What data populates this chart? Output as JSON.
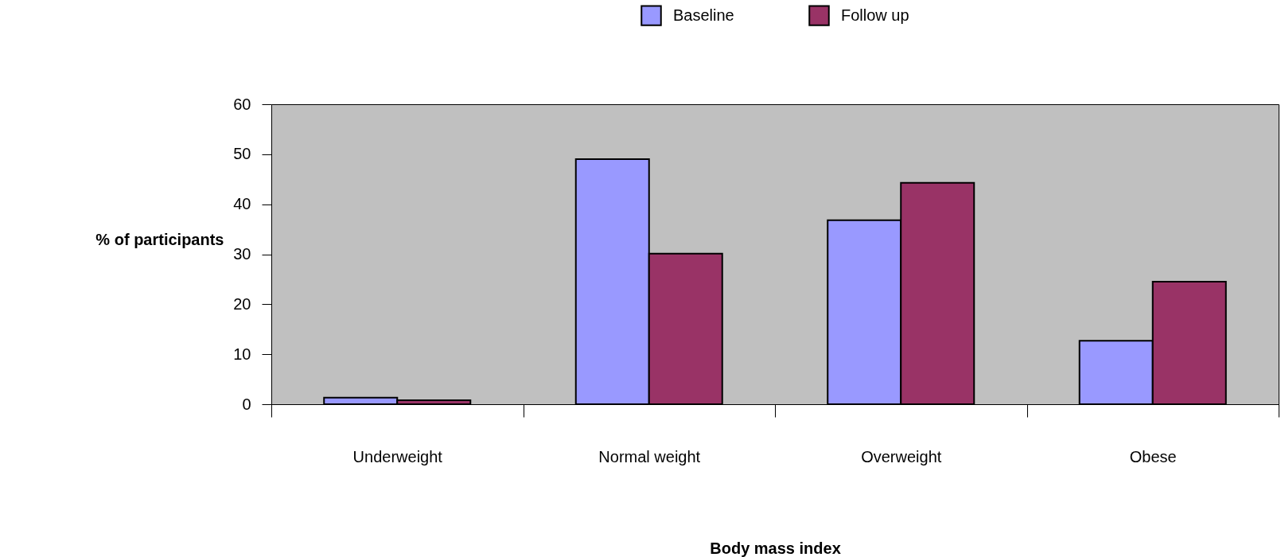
{
  "chart_data": {
    "type": "bar",
    "xlabel": "Body mass index",
    "ylabel": "% of participants",
    "categories": [
      "Underweight",
      "Normal weight",
      "Overweight",
      "Obese"
    ],
    "series": [
      {
        "name": "Baseline",
        "color": "#9999ff",
        "values": [
          1.3,
          49,
          36.8,
          12.7
        ]
      },
      {
        "name": "Follow up",
        "color": "#993366",
        "values": [
          0.8,
          30.1,
          44.3,
          24.5
        ]
      }
    ],
    "ylim": [
      0,
      60
    ],
    "yticks": [
      0,
      10,
      20,
      30,
      40,
      50,
      60
    ],
    "grid": false,
    "legend": "top"
  }
}
